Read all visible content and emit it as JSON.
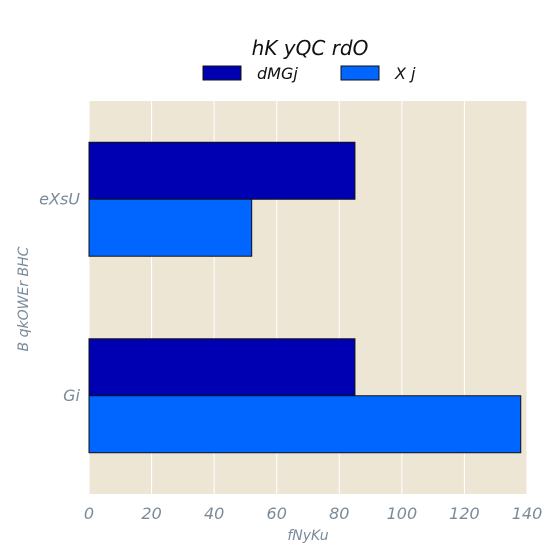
{
  "chart_data": {
    "type": "bar",
    "orientation": "horizontal",
    "title": "hK yQC  rdO",
    "xlabel": "fNyKu",
    "ylabel": "B qkOWEr BHC",
    "categories": [
      "eXsU",
      "Gi"
    ],
    "series": [
      {
        "name": "dMGj",
        "values": [
          85,
          85
        ],
        "color": "#0000b3"
      },
      {
        "name": "X j",
        "values": [
          52,
          138
        ],
        "color": "#0066ff"
      }
    ],
    "xlim": [
      0,
      140
    ],
    "xticks": [
      0,
      20,
      40,
      60,
      80,
      100,
      120,
      140
    ],
    "grid": true,
    "legend_position": "top-center",
    "colors": {
      "plot_background": "#ede6d5",
      "grid": "#ffffff",
      "tick_text": "#7a8a99",
      "bar_edge": "#111111"
    }
  }
}
